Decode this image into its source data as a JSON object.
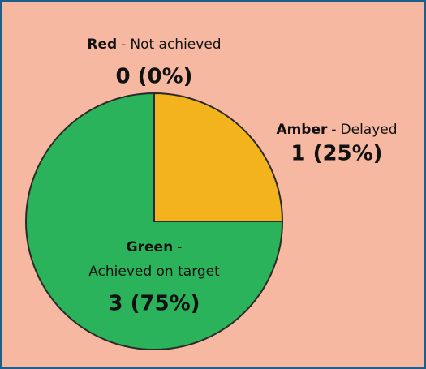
{
  "chart_data": {
    "type": "pie",
    "categories": [
      "Red",
      "Amber",
      "Green"
    ],
    "separator": "-",
    "descriptions": [
      "Not achieved",
      "Delayed",
      "Achieved on target"
    ],
    "values": [
      0,
      1,
      3
    ],
    "value_labels": [
      "0 (0%)",
      "1 (25%)",
      "3 (75%)"
    ],
    "colors": [
      "#e2312b",
      "#f2b31c",
      "#2bb35b"
    ]
  }
}
